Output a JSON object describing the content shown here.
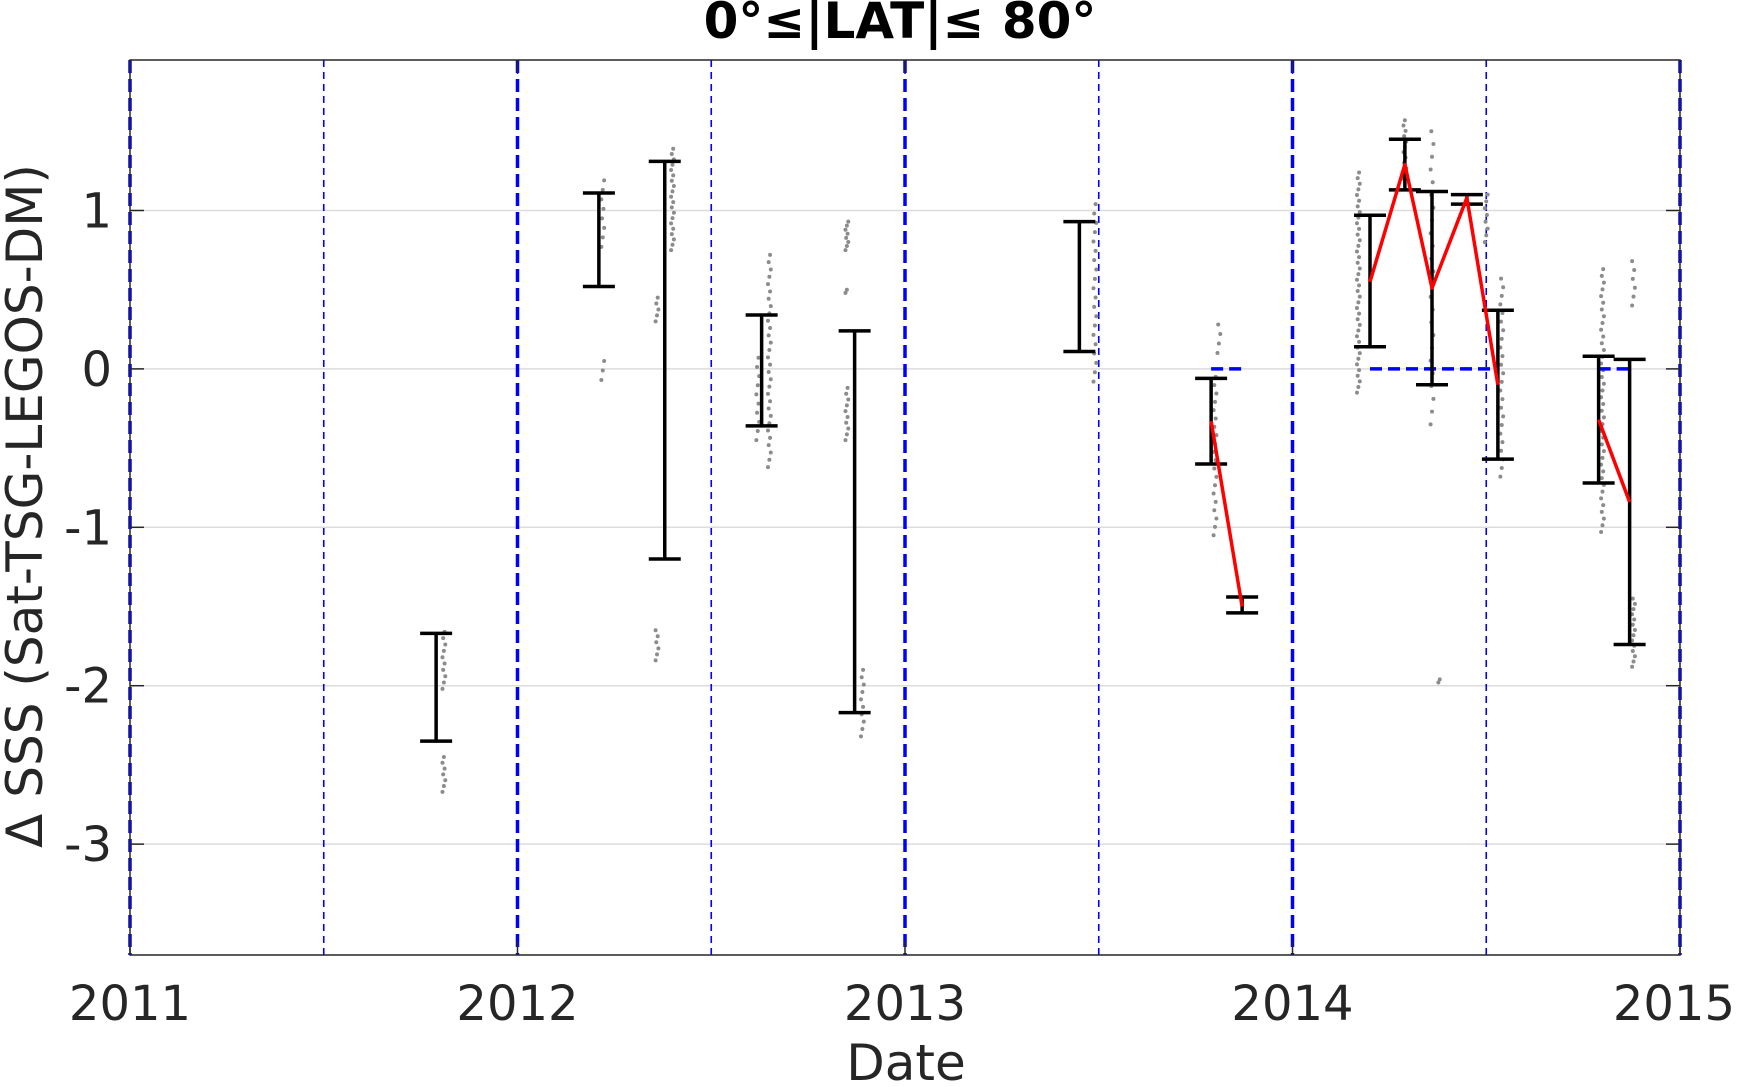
{
  "chart_data": {
    "type": "errorbar",
    "title": "0°≤|LAT|≤ 80°",
    "xlabel": "Date",
    "ylabel": "Δ SSS (Sat-TSG-LEGOS-DM)",
    "xlim": [
      2011,
      2015
    ],
    "ylim": [
      -3.7,
      1.95
    ],
    "x_ticks": [
      2011,
      2012,
      2013,
      2014,
      2015
    ],
    "x_tick_labels": [
      "2011",
      "2012",
      "2013",
      "2014",
      "2015"
    ],
    "y_ticks": [
      -3,
      -2,
      -1,
      0,
      1
    ],
    "y_tick_labels": [
      "-3",
      "-2",
      "-1",
      "0",
      "1"
    ],
    "grid": "horizontal",
    "year_lines": [
      2011,
      2012,
      2013,
      2014,
      2015
    ],
    "half_year_lines": [
      2011.5,
      2012.5,
      2013.5,
      2014.5
    ],
    "error_bars": [
      {
        "x": 2011.79,
        "low": -2.35,
        "high": -1.67
      },
      {
        "x": 2012.21,
        "low": 0.52,
        "high": 1.11
      },
      {
        "x": 2012.38,
        "low": -1.2,
        "high": 1.31
      },
      {
        "x": 2012.63,
        "low": -0.36,
        "high": 0.34
      },
      {
        "x": 2012.87,
        "low": -2.17,
        "high": 0.24
      },
      {
        "x": 2013.45,
        "low": 0.11,
        "high": 0.93
      },
      {
        "x": 2013.79,
        "low": -0.6,
        "high": -0.06
      },
      {
        "x": 2013.87,
        "low": -1.54,
        "high": -1.44
      },
      {
        "x": 2014.2,
        "low": 0.14,
        "high": 0.97
      },
      {
        "x": 2014.29,
        "low": 1.13,
        "high": 1.45
      },
      {
        "x": 2014.36,
        "low": -0.1,
        "high": 1.12
      },
      {
        "x": 2014.45,
        "low": 1.04,
        "high": 1.1
      },
      {
        "x": 2014.53,
        "low": -0.57,
        "high": 0.37
      },
      {
        "x": 2014.79,
        "low": -0.72,
        "high": 0.08
      },
      {
        "x": 2014.87,
        "low": -1.74,
        "high": 0.06
      }
    ],
    "mean_lines": [
      {
        "x": [
          2013.79,
          2013.87
        ],
        "y": [
          -0.33,
          -1.5
        ]
      },
      {
        "x": [
          2014.2,
          2014.29,
          2014.36,
          2014.45,
          2014.53
        ],
        "y": [
          0.55,
          1.29,
          0.51,
          1.08,
          -0.1
        ]
      },
      {
        "x": [
          2014.79,
          2014.87
        ],
        "y": [
          -0.32,
          -0.84
        ]
      }
    ],
    "zero_reference_segments": [
      {
        "x": [
          2013.79,
          2013.87
        ],
        "y": [
          0,
          0
        ]
      },
      {
        "x": [
          2014.2,
          2014.53
        ],
        "y": [
          0,
          0
        ]
      },
      {
        "x": [
          2014.79,
          2014.87
        ],
        "y": [
          0,
          0
        ]
      }
    ],
    "point_clusters": [
      {
        "x": 2011.81,
        "y_from": -2.67,
        "y_to": -2.45,
        "n": 7
      },
      {
        "x": 2011.81,
        "y_from": -2.02,
        "y_to": -1.66,
        "n": 10
      },
      {
        "x": 2012.22,
        "y_from": 0.77,
        "y_to": 1.19,
        "n": 8
      },
      {
        "x": 2012.22,
        "y_from": -0.07,
        "y_to": 0.05,
        "n": 3
      },
      {
        "x": 2012.36,
        "y_from": 0.3,
        "y_to": 0.45,
        "n": 5
      },
      {
        "x": 2012.36,
        "y_from": -1.84,
        "y_to": -1.65,
        "n": 6
      },
      {
        "x": 2012.4,
        "y_from": 0.75,
        "y_to": 1.39,
        "n": 20
      },
      {
        "x": 2012.65,
        "y_from": -0.62,
        "y_to": 0.72,
        "n": 30
      },
      {
        "x": 2012.62,
        "y_from": -0.45,
        "y_to": 0.07,
        "n": 10
      },
      {
        "x": 2012.85,
        "y_from": 0.75,
        "y_to": 0.93,
        "n": 8
      },
      {
        "x": 2012.85,
        "y_from": 0.48,
        "y_to": 0.5,
        "n": 2
      },
      {
        "x": 2012.85,
        "y_from": -0.45,
        "y_to": -0.12,
        "n": 10
      },
      {
        "x": 2012.89,
        "y_from": -2.32,
        "y_to": -1.9,
        "n": 10
      },
      {
        "x": 2013.49,
        "y_from": -0.08,
        "y_to": 1.04,
        "n": 20
      },
      {
        "x": 2013.8,
        "y_from": -1.05,
        "y_to": -0.05,
        "n": 20
      },
      {
        "x": 2013.81,
        "y_from": 0.1,
        "y_to": 0.28,
        "n": 4
      },
      {
        "x": 2014.17,
        "y_from": -0.15,
        "y_to": 1.24,
        "n": 40
      },
      {
        "x": 2014.29,
        "y_from": 1.2,
        "y_to": 1.57,
        "n": 12
      },
      {
        "x": 2014.36,
        "y_from": -0.35,
        "y_to": 1.5,
        "n": 24
      },
      {
        "x": 2014.38,
        "y_from": -1.98,
        "y_to": -1.96,
        "n": 2
      },
      {
        "x": 2014.5,
        "y_from": 0.8,
        "y_to": 1.1,
        "n": 8
      },
      {
        "x": 2014.54,
        "y_from": -0.68,
        "y_to": 0.57,
        "n": 24
      },
      {
        "x": 2014.8,
        "y_from": -1.03,
        "y_to": 0.63,
        "n": 40
      },
      {
        "x": 2014.88,
        "y_from": -1.88,
        "y_to": -1.45,
        "n": 14
      },
      {
        "x": 2014.88,
        "y_from": 0.4,
        "y_to": 0.68,
        "n": 6
      }
    ],
    "colors": {
      "error_bar": "#000000",
      "mean_line": "#ff0000",
      "year_line": "#0000ff",
      "zero_segment": "#0000ff",
      "points": "#8c8c8c",
      "grid": "#dcdcdc",
      "axis": "#262626"
    }
  }
}
